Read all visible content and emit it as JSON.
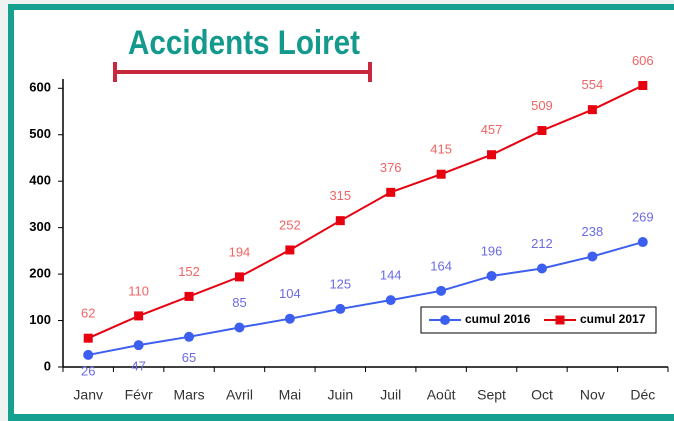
{
  "chart_data": {
    "type": "line",
    "title": "Accidents Loiret",
    "categories": [
      "Janv",
      "Févr",
      "Mars",
      "Avril",
      "Mai",
      "Juin",
      "Juil",
      "Août",
      "Sept",
      "Oct",
      "Nov",
      "Déc"
    ],
    "series": [
      {
        "name": "cumul 2016",
        "color": "#3d5ff0",
        "values": [
          26,
          47,
          65,
          85,
          104,
          125,
          144,
          164,
          196,
          212,
          238,
          269
        ]
      },
      {
        "name": "cumul 2017",
        "color": "#e60010",
        "values": [
          62,
          110,
          152,
          194,
          252,
          315,
          376,
          415,
          457,
          509,
          554,
          606
        ]
      }
    ],
    "ylim": [
      0,
      620
    ],
    "yticks": [
      0,
      100,
      200,
      300,
      400,
      500,
      600
    ],
    "grid": false,
    "legend": "lower right"
  }
}
